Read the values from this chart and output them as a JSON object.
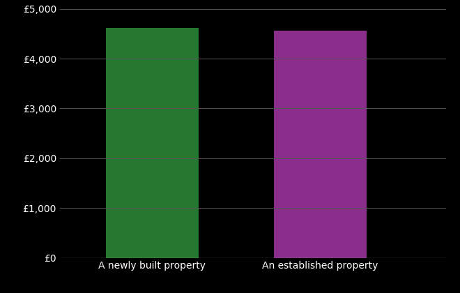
{
  "categories": [
    "A newly built property",
    "An established property"
  ],
  "values": [
    4620,
    4560
  ],
  "bar_colors": [
    "#267830",
    "#8B2E8B"
  ],
  "background_color": "#000000",
  "text_color": "#ffffff",
  "grid_color": "#555555",
  "ylim": [
    0,
    5000
  ],
  "yticks": [
    0,
    1000,
    2000,
    3000,
    4000,
    5000
  ],
  "ytick_labels": [
    "£0",
    "£1,000",
    "£2,000",
    "£3,000",
    "£4,000",
    "£5,000"
  ],
  "bar_width": 0.55,
  "x_positions": [
    1,
    2
  ],
  "xlim": [
    0.45,
    2.75
  ],
  "figsize": [
    6.6,
    4.2
  ],
  "dpi": 100,
  "label_fontsize": 10,
  "tick_fontsize": 10
}
